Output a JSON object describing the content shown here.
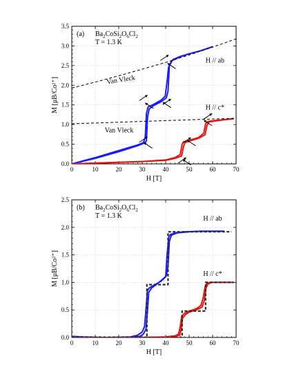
{
  "chart_data": [
    {
      "type": "line",
      "panel_label": "(a)",
      "compound": {
        "base": "Ba",
        "parts": [
          [
            "2",
            "CoSi"
          ],
          [
            "2",
            "O"
          ],
          [
            "6",
            "Cl"
          ],
          [
            "2",
            ""
          ]
        ]
      },
      "temperature": "T = 1.3 K",
      "xlabel": "H [T]",
      "ylabel": "M [μB/Co²⁺]",
      "xlim": [
        0,
        70
      ],
      "ylim": [
        0,
        3.5
      ],
      "xticks": [
        "0",
        "10",
        "20",
        "30",
        "40",
        "50",
        "60",
        "70"
      ],
      "yticks": [
        "0.0",
        "0.5",
        "1.0",
        "1.5",
        "2.0",
        "2.5",
        "3.0",
        "3.5"
      ],
      "grid": true,
      "annotations": [
        {
          "text": "H // ab",
          "x": 57,
          "y": 2.58
        },
        {
          "text": "H // c*",
          "x": 57,
          "y": 1.38
        },
        {
          "text": "Van Vleck",
          "x": 15,
          "y": 2.03,
          "rotate": -9
        },
        {
          "text": "Van Vleck",
          "x": 14,
          "y": 0.8,
          "rotate": 0
        }
      ],
      "series": [
        {
          "color": "#1a1aff",
          "style": "solid",
          "x": [
            0,
            10,
            20,
            28,
            30.5,
            31.3,
            31.8,
            32.5,
            35,
            38,
            39.8,
            40.6,
            41.2,
            42.5,
            46,
            50,
            55,
            60
          ],
          "y": [
            0,
            0.16,
            0.34,
            0.48,
            0.54,
            0.68,
            1.28,
            1.45,
            1.52,
            1.62,
            1.72,
            2.1,
            2.45,
            2.62,
            2.72,
            2.8,
            2.88,
            2.98
          ]
        },
        {
          "color": "#1a1aff",
          "style": "solid",
          "x": [
            0,
            10,
            20,
            28,
            30.5,
            31.8,
            32.3,
            33,
            35,
            38,
            40.3,
            41,
            41.6,
            43,
            46,
            50,
            55,
            60
          ],
          "y": [
            0,
            0.14,
            0.31,
            0.46,
            0.52,
            0.58,
            1.2,
            1.4,
            1.49,
            1.58,
            1.68,
            1.85,
            2.5,
            2.65,
            2.73,
            2.8,
            2.88,
            2.98
          ]
        },
        {
          "color": "#e8140c",
          "style": "solid",
          "x": [
            0,
            10,
            20,
            30,
            40,
            44,
            46.2,
            47,
            47.6,
            50,
            54,
            56.2,
            57,
            58,
            62,
            66,
            69
          ],
          "y": [
            0,
            0.02,
            0.04,
            0.06,
            0.1,
            0.16,
            0.24,
            0.5,
            0.56,
            0.6,
            0.67,
            0.78,
            1.02,
            1.08,
            1.11,
            1.13,
            1.15
          ]
        },
        {
          "color": "#e8140c",
          "style": "solid",
          "x": [
            0,
            10,
            20,
            30,
            40,
            44,
            46.8,
            47.6,
            48.2,
            50,
            54,
            56.8,
            57.6,
            58.5,
            62,
            66,
            69
          ],
          "y": [
            0,
            0.02,
            0.04,
            0.06,
            0.09,
            0.14,
            0.2,
            0.44,
            0.54,
            0.58,
            0.65,
            0.74,
            0.98,
            1.07,
            1.1,
            1.13,
            1.15
          ]
        },
        {
          "color": "#000000",
          "style": "dashed",
          "x": [
            0,
            10,
            20,
            30,
            40,
            50,
            60,
            70
          ],
          "y": [
            1.93,
            2.08,
            2.24,
            2.41,
            2.58,
            2.77,
            2.97,
            3.18
          ]
        },
        {
          "color": "#000000",
          "style": "dashed",
          "x": [
            0,
            70
          ],
          "y": [
            1.02,
            1.16
          ]
        }
      ],
      "arrows": [
        {
          "x": 30.5,
          "y": 0.62,
          "dir": "up"
        },
        {
          "x": 32.5,
          "y": 0.47,
          "dir": "down"
        },
        {
          "x": 30.5,
          "y": 1.68,
          "dir": "up"
        },
        {
          "x": 33,
          "y": 1.48,
          "dir": "down"
        },
        {
          "x": 39.5,
          "y": 2.7,
          "dir": "up"
        },
        {
          "x": 42.5,
          "y": 2.49,
          "dir": "down"
        },
        {
          "x": 40.5,
          "y": 1.58,
          "dir": "up"
        },
        {
          "x": 40.5,
          "y": 1.5,
          "dir": "down"
        },
        {
          "x": 49,
          "y": 0.6,
          "dir": "up"
        },
        {
          "x": 51,
          "y": 0.53,
          "dir": "down"
        },
        {
          "x": 58,
          "y": 1.21,
          "dir": "up"
        },
        {
          "x": 58,
          "y": 1.04,
          "dir": "down"
        },
        {
          "x": 47,
          "y": 0.09,
          "dir": "up"
        },
        {
          "x": 49,
          "y": 0.04,
          "dir": "down"
        }
      ]
    },
    {
      "type": "line",
      "panel_label": "(b)",
      "compound": {
        "base": "Ba",
        "parts": [
          [
            "2",
            "CoSi"
          ],
          [
            "2",
            "O"
          ],
          [
            "6",
            "Cl"
          ],
          [
            "2",
            ""
          ]
        ]
      },
      "temperature": "T = 1.3 K",
      "xlabel": "H [T]",
      "ylabel": "M [μB/Co²⁺]",
      "xlim": [
        0,
        70
      ],
      "ylim": [
        0,
        2.5
      ],
      "xticks": [
        "0",
        "10",
        "20",
        "30",
        "40",
        "50",
        "60",
        "70"
      ],
      "yticks": [
        "0.0",
        "0.5",
        "1.0",
        "1.5",
        "2.0",
        "2.5"
      ],
      "grid": true,
      "annotations": [
        {
          "text": "H // ab",
          "x": 56,
          "y": 2.12
        },
        {
          "text": "H // c*",
          "x": 56,
          "y": 1.12
        }
      ],
      "series": [
        {
          "color": "#1a1aff",
          "style": "solid",
          "x": [
            0,
            5,
            15,
            25,
            28,
            30,
            31,
            31.6,
            32.2,
            33,
            35,
            38,
            40,
            40.6,
            41.3,
            42,
            44,
            48,
            55,
            60,
            65
          ],
          "y": [
            0.02,
            0.01,
            0,
            0.01,
            0.04,
            0.1,
            0.2,
            0.5,
            0.85,
            0.9,
            0.95,
            1.02,
            1.1,
            1.5,
            1.82,
            1.87,
            1.9,
            1.92,
            1.93,
            1.93,
            1.93
          ]
        },
        {
          "color": "#1a1aff",
          "style": "solid",
          "x": [
            0,
            5,
            15,
            25,
            29,
            30.5,
            31.6,
            32.2,
            32.8,
            34,
            36,
            38.5,
            40.3,
            41,
            41.6,
            42.5,
            45,
            50,
            55,
            60,
            65
          ],
          "y": [
            0.01,
            0,
            0,
            0,
            0.02,
            0.06,
            0.15,
            0.45,
            0.82,
            0.9,
            0.96,
            1.05,
            1.12,
            1.3,
            1.75,
            1.86,
            1.9,
            1.92,
            1.93,
            1.93,
            1.93
          ]
        },
        {
          "color": "#e8140c",
          "style": "solid",
          "x": [
            0,
            10,
            20,
            30,
            40,
            44,
            45.5,
            46.2,
            46.8,
            48,
            50,
            53,
            55,
            56,
            56.8,
            57.5,
            59,
            62,
            66,
            69
          ],
          "y": [
            0,
            0,
            0,
            0,
            0.01,
            0.03,
            0.06,
            0.2,
            0.38,
            0.44,
            0.48,
            0.52,
            0.58,
            0.72,
            0.92,
            0.98,
            1.0,
            1.0,
            1.0,
            1.0
          ]
        },
        {
          "color": "#e8140c",
          "style": "solid",
          "x": [
            0,
            10,
            20,
            30,
            40,
            44,
            46,
            46.6,
            47.2,
            48.5,
            50,
            53,
            55.5,
            56.5,
            57.2,
            58,
            59.5,
            62,
            66,
            69
          ],
          "y": [
            0,
            0,
            0,
            0,
            0,
            0.02,
            0.04,
            0.15,
            0.35,
            0.42,
            0.46,
            0.5,
            0.55,
            0.68,
            0.9,
            0.97,
            1.0,
            1.0,
            1.0,
            1.0
          ]
        },
        {
          "color": "#2a2a2a",
          "style": "stepdash",
          "x": [
            0,
            32,
            32,
            41,
            41,
            68
          ],
          "y": [
            0,
            0,
            0.96,
            0.96,
            1.92,
            1.92
          ]
        },
        {
          "color": "#2a2a2a",
          "style": "stepdash",
          "x": [
            0,
            47,
            47,
            57,
            57,
            69
          ],
          "y": [
            0,
            0,
            0.48,
            0.48,
            1.0,
            1.0
          ]
        }
      ],
      "arrows": []
    }
  ]
}
